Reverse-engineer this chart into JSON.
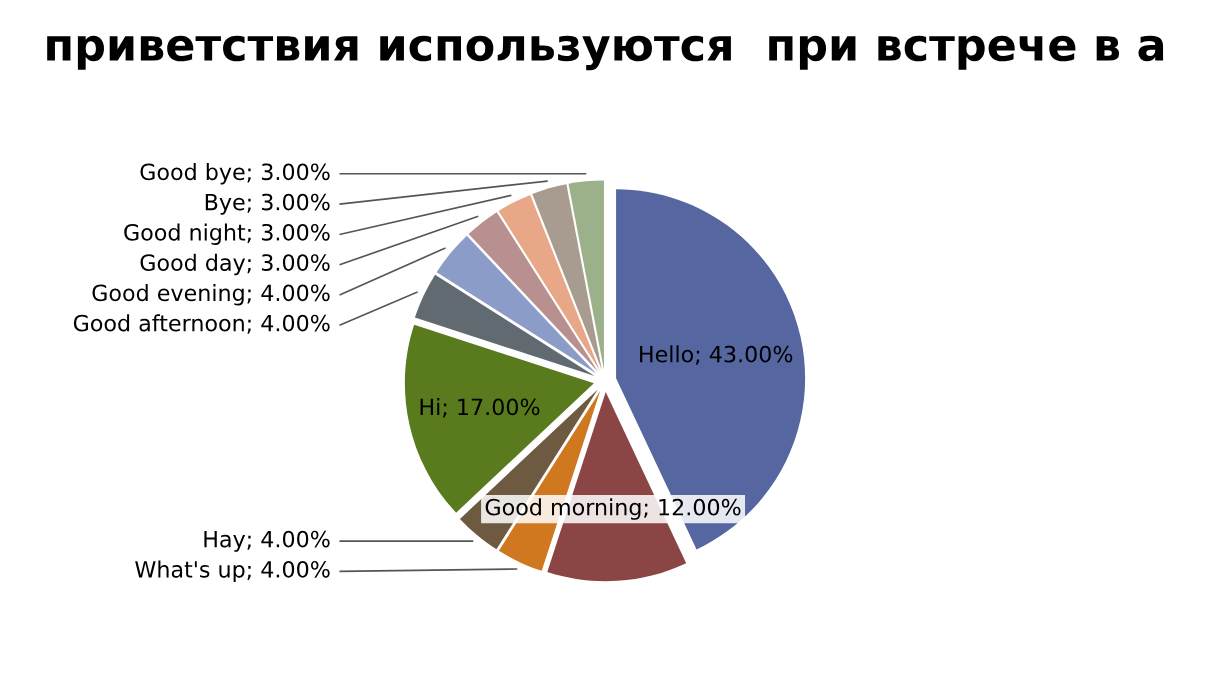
{
  "chart_data": {
    "type": "pie",
    "title": "приветствия используются  при встрече в а",
    "categories": [
      "Hello",
      "Good morning",
      "What's up",
      "Hay",
      "Hi",
      "Good afternoon",
      "Good evening",
      "Good day",
      "Good night",
      "Bye",
      "Good bye"
    ],
    "values": [
      43,
      12,
      4,
      4,
      17,
      4,
      4,
      3,
      3,
      3,
      3
    ],
    "value_labels": [
      "; 43.00%",
      "; 12.00%",
      "; 4.00%",
      "; 4.00%",
      "; 17.00%",
      "; 4.00%",
      "; 4.00%",
      "; 3.00%",
      "; 3.00%",
      "; 3.00%",
      "; 3.00%"
    ],
    "colors": [
      "#5566a0",
      "#8b4545",
      "#d07820",
      "#6e5a40",
      "#5a7a1e",
      "#606a70",
      "#8c9cc8",
      "#b89090",
      "#e8a888",
      "#a89c90",
      "#9cb08a"
    ],
    "legend": false
  }
}
